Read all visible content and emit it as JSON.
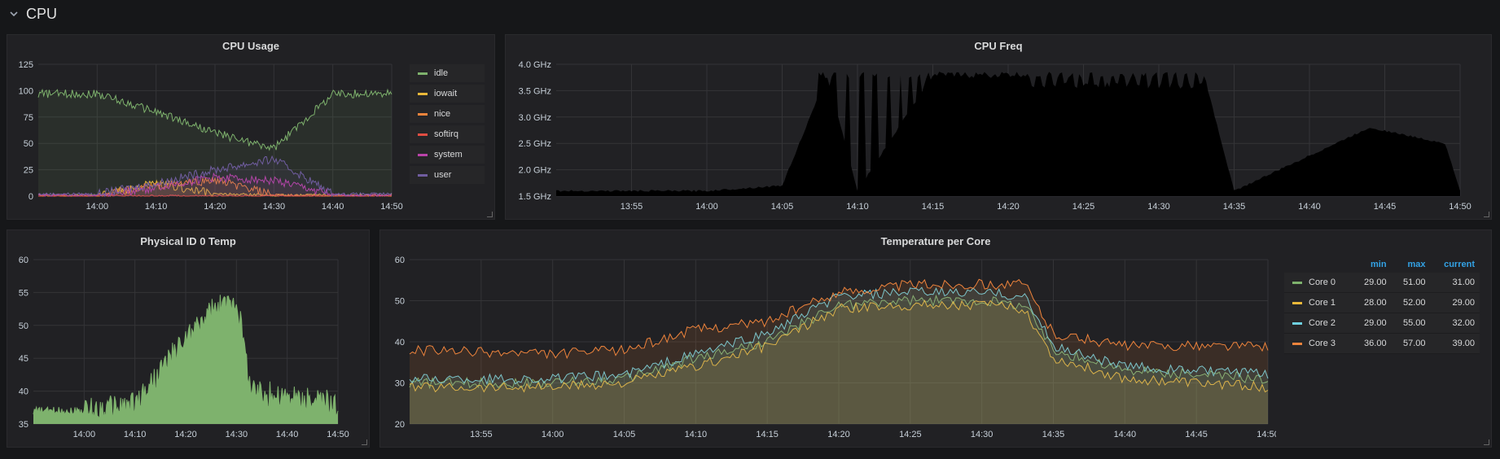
{
  "row": {
    "title": "CPU"
  },
  "panels": {
    "cpu_usage": {
      "title": "CPU Usage"
    },
    "cpu_freq": {
      "title": "CPU Freq"
    },
    "phys_temp": {
      "title": "Physical ID 0 Temp"
    },
    "core_temp": {
      "title": "Temperature per Core"
    }
  },
  "colors": {
    "green": "#7eb26d",
    "yellow": "#eab839",
    "orange": "#ef843c",
    "red": "#e24d42",
    "purple": "#ba43a9",
    "violet": "#705da0",
    "blue": "#6ed0e0",
    "accent": "#33a2e5"
  },
  "chart_data": [
    {
      "id": "cpu_usage",
      "type": "line",
      "title": "CPU Usage",
      "x": [
        "13:50",
        "14:00",
        "14:10",
        "14:20",
        "14:30",
        "14:40",
        "14:50"
      ],
      "xticks": [
        "14:00",
        "14:10",
        "14:20",
        "14:30",
        "14:40",
        "14:50"
      ],
      "yticks": [
        "0",
        "25",
        "50",
        "75",
        "100",
        "125"
      ],
      "ylim": [
        0,
        125
      ],
      "grid": true,
      "legend_position": "right",
      "series": [
        {
          "name": "idle",
          "color": "#7eb26d",
          "values": [
            97,
            97,
            80,
            60,
            45,
            97,
            97
          ]
        },
        {
          "name": "iowait",
          "color": "#eab839",
          "values": [
            1,
            1,
            12,
            2,
            1,
            1,
            1
          ]
        },
        {
          "name": "nice",
          "color": "#ef843c",
          "values": [
            0,
            0,
            10,
            15,
            1,
            0,
            0
          ]
        },
        {
          "name": "softirq",
          "color": "#e24d42",
          "values": [
            0,
            0,
            0,
            0,
            0,
            0,
            0
          ]
        },
        {
          "name": "system",
          "color": "#ba43a9",
          "values": [
            1,
            1,
            8,
            18,
            15,
            1,
            1
          ]
        },
        {
          "name": "user",
          "color": "#705da0",
          "values": [
            2,
            2,
            12,
            25,
            35,
            2,
            2
          ]
        }
      ]
    },
    {
      "id": "cpu_freq",
      "type": "area",
      "title": "CPU Freq",
      "x": [
        "13:50",
        "14:00",
        "14:05",
        "14:08",
        "14:10",
        "14:15",
        "14:20",
        "14:25",
        "14:30",
        "14:33",
        "14:35",
        "14:44",
        "14:49",
        "14:50"
      ],
      "values": [
        1.6,
        1.6,
        1.7,
        3.8,
        1.6,
        3.8,
        3.8,
        3.8,
        3.8,
        3.8,
        1.6,
        2.8,
        2.5,
        1.6
      ],
      "xticks": [
        "13:55",
        "14:00",
        "14:05",
        "14:10",
        "14:15",
        "14:20",
        "14:25",
        "14:30",
        "14:35",
        "14:40",
        "14:45",
        "14:50"
      ],
      "yticks": [
        "1.5 GHz",
        "2.0 GHz",
        "2.5 GHz",
        "3.0 GHz",
        "3.5 GHz",
        "4.0 GHz"
      ],
      "ylim": [
        1.5,
        4.0
      ],
      "grid": true
    },
    {
      "id": "phys_temp",
      "type": "area",
      "title": "Physical ID 0 Temp",
      "x": [
        "13:50",
        "14:00",
        "14:10",
        "14:15",
        "14:20",
        "14:25",
        "14:30",
        "14:33",
        "14:40",
        "14:50"
      ],
      "values": [
        37,
        37,
        38,
        43,
        48,
        52,
        54,
        40,
        39,
        38
      ],
      "xticks": [
        "14:00",
        "14:10",
        "14:20",
        "14:30",
        "14:40",
        "14:50"
      ],
      "yticks": [
        "35",
        "40",
        "45",
        "50",
        "55",
        "60"
      ],
      "ylim": [
        35,
        60
      ],
      "grid": true
    },
    {
      "id": "core_temp",
      "type": "line",
      "title": "Temperature per Core",
      "x": [
        "13:50",
        "14:00",
        "14:05",
        "14:10",
        "14:15",
        "14:20",
        "14:25",
        "14:30",
        "14:33",
        "14:35",
        "14:40",
        "14:50"
      ],
      "xticks": [
        "13:55",
        "14:00",
        "14:05",
        "14:10",
        "14:15",
        "14:20",
        "14:25",
        "14:30",
        "14:35",
        "14:40",
        "14:45",
        "14:50"
      ],
      "yticks": [
        "20",
        "30",
        "40",
        "50",
        "60"
      ],
      "ylim": [
        20,
        60
      ],
      "grid": true,
      "legend_position": "right",
      "legend_columns": [
        "min",
        "max",
        "current"
      ],
      "series": [
        {
          "name": "Core 0",
          "color": "#7eb26d",
          "values": [
            30,
            30,
            31,
            36,
            40,
            49,
            50,
            50,
            49,
            38,
            33,
            31
          ],
          "min": "29.00",
          "max": "51.00",
          "current": "31.00"
        },
        {
          "name": "Core 1",
          "color": "#eab839",
          "values": [
            29,
            29,
            30,
            34,
            39,
            48,
            49,
            49,
            48,
            36,
            31,
            29
          ],
          "min": "28.00",
          "max": "52.00",
          "current": "29.00"
        },
        {
          "name": "Core 2",
          "color": "#6ed0e0",
          "values": [
            31,
            31,
            32,
            37,
            42,
            51,
            52,
            52,
            51,
            39,
            34,
            32
          ],
          "min": "29.00",
          "max": "55.00",
          "current": "32.00"
        },
        {
          "name": "Core 3",
          "color": "#ef843c",
          "values": [
            38,
            37,
            38,
            43,
            45,
            52,
            54,
            54,
            54,
            42,
            39,
            39
          ],
          "min": "36.00",
          "max": "57.00",
          "current": "39.00"
        }
      ]
    }
  ]
}
